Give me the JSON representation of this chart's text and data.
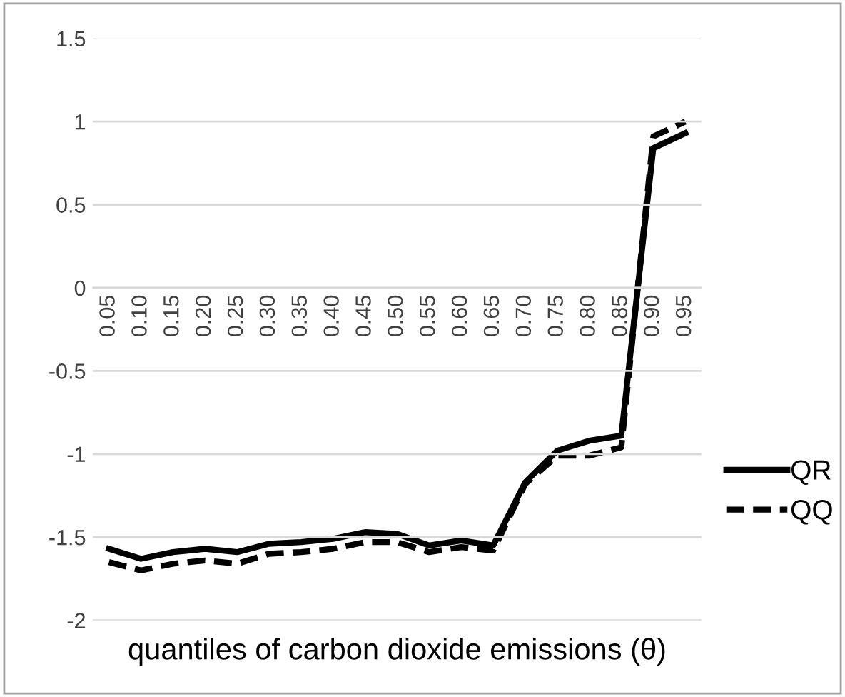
{
  "chart_data": {
    "type": "line",
    "xlabel": "quantiles of carbon dioxide emissions (θ)",
    "categories": [
      "0.05",
      "0.10",
      "0.15",
      "0.20",
      "0.25",
      "0.30",
      "0.35",
      "0.40",
      "0.45",
      "0.50",
      "0.55",
      "0.60",
      "0.65",
      "0.70",
      "0.75",
      "0.80",
      "0.85",
      "0.90",
      "0.95"
    ],
    "series": [
      {
        "name": "QR",
        "color": "#000000",
        "line_style": "solid",
        "values": [
          -1.57,
          -1.63,
          -1.59,
          -1.57,
          -1.59,
          -1.54,
          -1.53,
          -1.51,
          -1.47,
          -1.48,
          -1.55,
          -1.52,
          -1.55,
          -1.17,
          -0.98,
          -0.92,
          -0.89,
          0.84,
          0.93
        ]
      },
      {
        "name": "QQ",
        "color": "#000000",
        "line_style": "dashed",
        "values": [
          -1.65,
          -1.7,
          -1.66,
          -1.64,
          -1.66,
          -1.6,
          -1.59,
          -1.57,
          -1.53,
          -1.53,
          -1.59,
          -1.56,
          -1.58,
          -1.18,
          -1.01,
          -1.01,
          -0.96,
          0.91,
          1.0
        ]
      }
    ],
    "ylim": [
      -2,
      1.5
    ],
    "yticks": [
      {
        "value": -2,
        "label": "-2"
      },
      {
        "value": -1.5,
        "label": "-1.5"
      },
      {
        "value": -1,
        "label": "-1"
      },
      {
        "value": -0.5,
        "label": "-0.5"
      },
      0,
      0.5,
      1,
      1.5
    ],
    "grid": "y",
    "legend": "right"
  }
}
